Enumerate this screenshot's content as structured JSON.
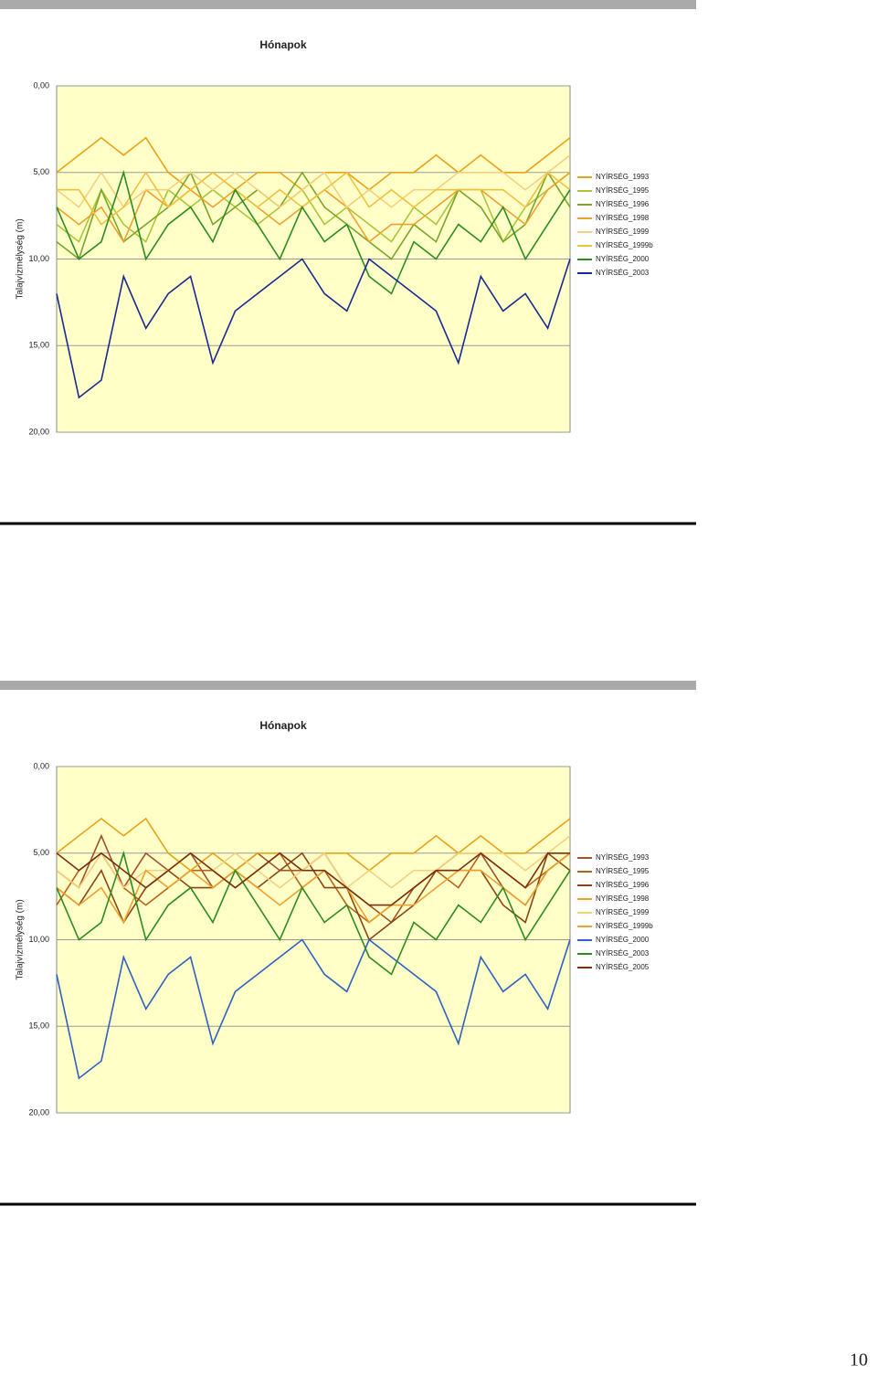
{
  "chart_data": [
    {
      "type": "line",
      "title": "Hónapok",
      "y_label": "Talajvízmélység (m)",
      "categories": [
        null,
        null,
        null,
        null,
        null,
        null,
        null,
        null,
        null,
        null,
        null,
        null,
        null,
        null,
        null,
        null,
        null,
        null,
        null,
        null,
        null,
        null,
        null,
        null
      ],
      "ylim": [
        0,
        20
      ],
      "y_inverted": true,
      "yticks": [
        {
          "value": 0,
          "label": "0,00"
        },
        {
          "value": 5,
          "label": "5,00"
        },
        {
          "value": 10,
          "label": "10,00"
        },
        {
          "value": 15,
          "label": "15,00"
        },
        {
          "value": 20,
          "label": "20,00"
        }
      ],
      "grid": true,
      "series": [
        {
          "name": "NYÍRSÉG_1993",
          "color": "#e8a317",
          "values": [
            5,
            4,
            3,
            4,
            3,
            5,
            6,
            5,
            6,
            5,
            5,
            6,
            5,
            5,
            6,
            5,
            5,
            4,
            5,
            4,
            5,
            5,
            4,
            3
          ]
        },
        {
          "name": "NYÍRSÉG_1995",
          "color": "#a8c83a",
          "values": [
            8,
            9,
            6,
            8,
            9,
            6,
            7,
            6,
            7,
            8,
            7,
            6,
            8,
            7,
            8,
            9,
            7,
            8,
            6,
            6,
            9,
            7,
            6,
            5
          ]
        },
        {
          "name": "NYÍRSÉG_1996",
          "color": "#7aa52a",
          "values": [
            9,
            10,
            6,
            9,
            8,
            7,
            5,
            8,
            7,
            6,
            7,
            5,
            7,
            8,
            9,
            10,
            8,
            9,
            6,
            7,
            9,
            8,
            5,
            7
          ]
        },
        {
          "name": "NYÍRSÉG_1998",
          "color": "#f0a030",
          "values": [
            7,
            8,
            7,
            9,
            6,
            7,
            6,
            7,
            6,
            7,
            8,
            7,
            6,
            7,
            9,
            8,
            8,
            7,
            6,
            6,
            7,
            8,
            6,
            5
          ]
        },
        {
          "name": "NYÍRSÉG_1999",
          "color": "#f5d080",
          "values": [
            6,
            7,
            5,
            7,
            6,
            6,
            5,
            6,
            5,
            6,
            7,
            6,
            5,
            7,
            6,
            7,
            6,
            6,
            5,
            5,
            5,
            6,
            5,
            4
          ]
        },
        {
          "name": "NYÍRSÉG_1999b",
          "color": "#f2c040",
          "values": [
            6,
            6,
            8,
            7,
            5,
            7,
            6,
            5,
            6,
            7,
            6,
            7,
            6,
            5,
            7,
            6,
            7,
            6,
            6,
            6,
            6,
            7,
            5,
            6
          ]
        },
        {
          "name": "NYÍRSÉG_2000",
          "color": "#2e8b20",
          "values": [
            7,
            10,
            9,
            5,
            10,
            8,
            7,
            9,
            6,
            8,
            10,
            7,
            9,
            8,
            11,
            12,
            9,
            10,
            8,
            9,
            7,
            10,
            8,
            6
          ]
        },
        {
          "name": "NYÍRSÉG_2003",
          "color": "#1a2a90",
          "values": [
            12,
            18,
            17,
            11,
            14,
            12,
            11,
            16,
            13,
            12,
            11,
            10,
            12,
            13,
            10,
            11,
            12,
            13,
            16,
            11,
            13,
            12,
            14,
            10
          ]
        }
      ]
    },
    {
      "type": "line",
      "title": "Hónapok",
      "y_label": "Talajvízmélység (m)",
      "categories": [
        null,
        null,
        null,
        null,
        null,
        null,
        null,
        null,
        null,
        null,
        null,
        null,
        null,
        null,
        null,
        null,
        null,
        null,
        null,
        null,
        null,
        null,
        null,
        null
      ],
      "ylim": [
        0,
        20
      ],
      "y_inverted": true,
      "yticks": [
        {
          "value": 0,
          "label": "0,00"
        },
        {
          "value": 5,
          "label": "5,00"
        },
        {
          "value": 10,
          "label": "10,00"
        },
        {
          "value": 15,
          "label": "15,00"
        },
        {
          "value": 20,
          "label": "20,00"
        }
      ],
      "grid": true,
      "series": [
        {
          "name": "NYÍRSÉG_1993",
          "color": "#a0522d",
          "values": [
            6,
            7,
            4,
            7,
            5,
            6,
            5,
            7,
            6,
            5,
            6,
            6,
            5,
            7,
            8,
            9,
            7,
            6,
            5,
            5,
            7,
            8,
            6,
            5
          ]
        },
        {
          "name": "NYÍRSÉG_1995",
          "color": "#b8621a",
          "values": [
            8,
            6,
            5,
            7,
            8,
            7,
            6,
            6,
            7,
            6,
            5,
            7,
            6,
            8,
            9,
            8,
            7,
            6,
            7,
            5,
            6,
            7,
            6,
            5
          ]
        },
        {
          "name": "NYÍRSÉG_1996",
          "color": "#8b4513",
          "values": [
            7,
            8,
            6,
            9,
            7,
            6,
            7,
            7,
            6,
            7,
            6,
            5,
            7,
            7,
            10,
            9,
            8,
            6,
            6,
            6,
            8,
            9,
            5,
            6
          ]
        },
        {
          "name": "NYÍRSÉG_1998",
          "color": "#e8a317",
          "values": [
            5,
            4,
            3,
            4,
            3,
            5,
            6,
            5,
            6,
            5,
            5,
            6,
            5,
            5,
            6,
            5,
            5,
            4,
            5,
            4,
            5,
            5,
            4,
            3
          ]
        },
        {
          "name": "NYÍRSÉG_1999",
          "color": "#f5d080",
          "values": [
            6,
            7,
            5,
            7,
            6,
            6,
            5,
            6,
            5,
            6,
            7,
            6,
            5,
            7,
            6,
            7,
            6,
            6,
            5,
            5,
            5,
            6,
            5,
            4
          ]
        },
        {
          "name": "NYÍRSÉG_1999b",
          "color": "#f0a030",
          "values": [
            7,
            8,
            7,
            9,
            6,
            7,
            6,
            7,
            6,
            7,
            8,
            7,
            6,
            7,
            9,
            8,
            8,
            7,
            6,
            6,
            7,
            8,
            6,
            5
          ]
        },
        {
          "name": "NYÍRSÉG_2000",
          "color": "#3060c0",
          "values": [
            12,
            18,
            17,
            11,
            14,
            12,
            11,
            16,
            13,
            12,
            11,
            10,
            12,
            13,
            10,
            11,
            12,
            13,
            16,
            11,
            13,
            12,
            14,
            10
          ]
        },
        {
          "name": "NYÍRSÉG_2003",
          "color": "#2e8b20",
          "values": [
            7,
            10,
            9,
            5,
            10,
            8,
            7,
            9,
            6,
            8,
            10,
            7,
            9,
            8,
            11,
            12,
            9,
            10,
            8,
            9,
            7,
            10,
            8,
            6
          ]
        },
        {
          "name": "NYÍRSÉG_2005",
          "color": "#7a3010",
          "values": [
            5,
            6,
            5,
            6,
            7,
            6,
            5,
            6,
            7,
            6,
            5,
            6,
            6,
            7,
            8,
            8,
            7,
            6,
            6,
            5,
            6,
            7,
            5,
            5
          ]
        }
      ]
    }
  ],
  "page_number": "10"
}
